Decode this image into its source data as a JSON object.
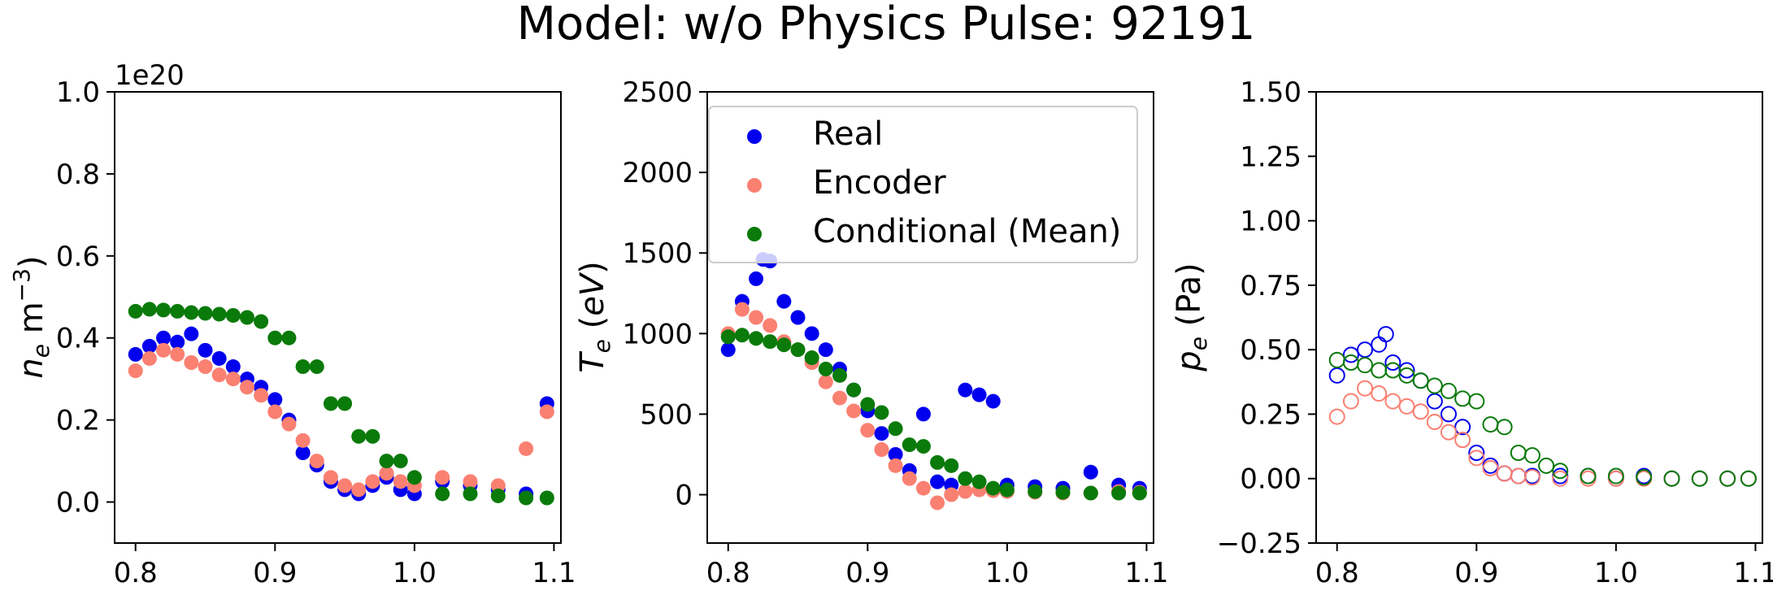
{
  "figure": {
    "title": "Model: w/o Physics  Pulse: 92191"
  },
  "colors": {
    "real": "#0000ee",
    "encoder": "#fa8072",
    "conditional": "#0a7a0a"
  },
  "legend": {
    "location": "upper-right of middle panel",
    "entries": [
      {
        "label": "Real",
        "color": "#0000ee"
      },
      {
        "label": "Encoder",
        "color": "#fa8072"
      },
      {
        "label": "Conditional (Mean)",
        "color": "#0a7a0a"
      }
    ]
  },
  "chart_data": [
    {
      "type": "scatter",
      "marker": "filled",
      "ylabel": "n_e m^-3",
      "offset_text": "1e20",
      "xlim": [
        0.785,
        1.105
      ],
      "ylim": [
        -0.1,
        1.0
      ],
      "xticks": [
        0.8,
        0.9,
        1.0,
        1.1
      ],
      "xtick_labels": [
        "0.8",
        "0.9",
        "1.0",
        "1.1"
      ],
      "yticks": [
        0.0,
        0.2,
        0.4,
        0.6,
        0.8,
        1.0
      ],
      "ytick_labels": [
        "0.0",
        "0.2",
        "0.4",
        "0.6",
        "0.8",
        "1.0"
      ],
      "series": [
        {
          "name": "Real",
          "x": [
            0.8,
            0.81,
            0.82,
            0.83,
            0.84,
            0.85,
            0.86,
            0.87,
            0.88,
            0.89,
            0.9,
            0.91,
            0.92,
            0.93,
            0.94,
            0.95,
            0.96,
            0.97,
            0.98,
            0.99,
            1.0,
            1.02,
            1.04,
            1.06,
            1.08,
            1.095
          ],
          "y": [
            0.36,
            0.38,
            0.4,
            0.39,
            0.41,
            0.37,
            0.35,
            0.33,
            0.3,
            0.28,
            0.25,
            0.2,
            0.12,
            0.09,
            0.05,
            0.03,
            0.02,
            0.04,
            0.06,
            0.03,
            0.02,
            0.05,
            0.04,
            0.03,
            0.02,
            0.24
          ]
        },
        {
          "name": "Encoder",
          "x": [
            0.8,
            0.81,
            0.82,
            0.83,
            0.84,
            0.85,
            0.86,
            0.87,
            0.88,
            0.89,
            0.9,
            0.91,
            0.92,
            0.93,
            0.94,
            0.95,
            0.96,
            0.97,
            0.98,
            0.99,
            1.0,
            1.02,
            1.04,
            1.06,
            1.08,
            1.095
          ],
          "y": [
            0.32,
            0.35,
            0.37,
            0.36,
            0.34,
            0.33,
            0.31,
            0.3,
            0.28,
            0.26,
            0.22,
            0.19,
            0.15,
            0.1,
            0.06,
            0.04,
            0.03,
            0.05,
            0.07,
            0.05,
            0.04,
            0.06,
            0.05,
            0.04,
            0.13,
            0.22
          ]
        },
        {
          "name": "Conditional (Mean)",
          "x": [
            0.8,
            0.81,
            0.82,
            0.83,
            0.84,
            0.85,
            0.86,
            0.87,
            0.88,
            0.89,
            0.9,
            0.91,
            0.92,
            0.93,
            0.94,
            0.95,
            0.96,
            0.97,
            0.98,
            0.99,
            1.0,
            1.02,
            1.04,
            1.06,
            1.08,
            1.095
          ],
          "y": [
            0.465,
            0.47,
            0.468,
            0.465,
            0.462,
            0.46,
            0.458,
            0.455,
            0.45,
            0.44,
            0.4,
            0.4,
            0.33,
            0.33,
            0.24,
            0.24,
            0.16,
            0.16,
            0.1,
            0.1,
            0.06,
            0.02,
            0.02,
            0.015,
            0.01,
            0.01
          ]
        }
      ]
    },
    {
      "type": "scatter",
      "marker": "filled",
      "ylabel": "T_e (eV)",
      "xlim": [
        0.785,
        1.105
      ],
      "ylim": [
        -300,
        2500
      ],
      "xticks": [
        0.8,
        0.9,
        1.0,
        1.1
      ],
      "xtick_labels": [
        "0.8",
        "0.9",
        "1.0",
        "1.1"
      ],
      "yticks": [
        0,
        500,
        1000,
        1500,
        2000,
        2500
      ],
      "ytick_labels": [
        "0",
        "500",
        "1000",
        "1500",
        "2000",
        "2500"
      ],
      "series": [
        {
          "name": "Real",
          "x": [
            0.8,
            0.81,
            0.82,
            0.825,
            0.83,
            0.84,
            0.85,
            0.86,
            0.87,
            0.88,
            0.89,
            0.9,
            0.91,
            0.92,
            0.93,
            0.94,
            0.95,
            0.96,
            0.97,
            0.98,
            0.99,
            1.0,
            1.02,
            1.04,
            1.06,
            1.08,
            1.095
          ],
          "y": [
            900,
            1200,
            1340,
            1460,
            1450,
            1200,
            1100,
            1000,
            900,
            780,
            650,
            520,
            380,
            250,
            150,
            500,
            80,
            60,
            650,
            620,
            580,
            60,
            50,
            40,
            140,
            60,
            40
          ]
        },
        {
          "name": "Encoder",
          "x": [
            0.8,
            0.81,
            0.82,
            0.83,
            0.84,
            0.85,
            0.86,
            0.87,
            0.88,
            0.89,
            0.9,
            0.91,
            0.92,
            0.93,
            0.94,
            0.95,
            0.96,
            0.97,
            0.98,
            0.99,
            1.0,
            1.02,
            1.04,
            1.06,
            1.08,
            1.095
          ],
          "y": [
            1000,
            1150,
            1100,
            1050,
            950,
            900,
            820,
            700,
            600,
            520,
            400,
            280,
            180,
            100,
            40,
            -50,
            0,
            20,
            30,
            25,
            20,
            15,
            10,
            10,
            20,
            15
          ]
        },
        {
          "name": "Conditional (Mean)",
          "x": [
            0.8,
            0.81,
            0.82,
            0.83,
            0.84,
            0.85,
            0.86,
            0.87,
            0.88,
            0.89,
            0.9,
            0.91,
            0.92,
            0.93,
            0.94,
            0.95,
            0.96,
            0.97,
            0.98,
            0.99,
            1.0,
            1.02,
            1.04,
            1.06,
            1.08,
            1.095
          ],
          "y": [
            980,
            990,
            970,
            950,
            930,
            900,
            850,
            780,
            740,
            650,
            560,
            510,
            410,
            310,
            300,
            200,
            180,
            100,
            80,
            40,
            30,
            20,
            15,
            10,
            10,
            10
          ]
        }
      ]
    },
    {
      "type": "scatter",
      "marker": "open",
      "ylabel": "p_e (Pa)",
      "xlim": [
        0.785,
        1.105
      ],
      "ylim": [
        -0.25,
        1.5
      ],
      "xticks": [
        0.8,
        0.9,
        1.0,
        1.1
      ],
      "xtick_labels": [
        "0.8",
        "0.9",
        "1.0",
        "1.1"
      ],
      "yticks": [
        -0.25,
        0.0,
        0.25,
        0.5,
        0.75,
        1.0,
        1.25,
        1.5
      ],
      "ytick_labels": [
        "−0.25",
        "0.00",
        "0.25",
        "0.50",
        "0.75",
        "1.00",
        "1.25",
        "1.50"
      ],
      "series": [
        {
          "name": "Real",
          "x": [
            0.8,
            0.81,
            0.82,
            0.83,
            0.835,
            0.84,
            0.85,
            0.86,
            0.87,
            0.88,
            0.89,
            0.9,
            0.91,
            0.92,
            0.93,
            0.94,
            0.96,
            0.98,
            1.0,
            1.02,
            1.04,
            1.06,
            1.08,
            1.095
          ],
          "y": [
            0.4,
            0.48,
            0.5,
            0.52,
            0.56,
            0.45,
            0.42,
            0.38,
            0.3,
            0.25,
            0.2,
            0.1,
            0.05,
            0.02,
            0.01,
            0.01,
            0.01,
            0.01,
            0.0,
            0.01,
            0.0,
            0.0,
            0.0,
            0.0
          ]
        },
        {
          "name": "Encoder",
          "x": [
            0.8,
            0.81,
            0.82,
            0.83,
            0.84,
            0.85,
            0.86,
            0.87,
            0.88,
            0.89,
            0.9,
            0.91,
            0.92,
            0.93,
            0.94,
            0.96,
            0.98,
            1.0,
            1.02,
            1.04,
            1.06,
            1.08,
            1.095
          ],
          "y": [
            0.24,
            0.3,
            0.35,
            0.33,
            0.3,
            0.28,
            0.26,
            0.22,
            0.18,
            0.15,
            0.08,
            0.04,
            0.02,
            0.01,
            0.005,
            0.0,
            0.0,
            0.0,
            0.0,
            0.0,
            0.0,
            0.0,
            0.0
          ]
        },
        {
          "name": "Conditional (Mean)",
          "x": [
            0.8,
            0.81,
            0.82,
            0.83,
            0.84,
            0.85,
            0.86,
            0.87,
            0.88,
            0.89,
            0.9,
            0.91,
            0.92,
            0.93,
            0.94,
            0.95,
            0.96,
            0.98,
            1.0,
            1.02,
            1.04,
            1.06,
            1.08,
            1.095
          ],
          "y": [
            0.46,
            0.45,
            0.44,
            0.42,
            0.42,
            0.4,
            0.38,
            0.36,
            0.34,
            0.31,
            0.3,
            0.21,
            0.2,
            0.1,
            0.09,
            0.05,
            0.03,
            0.01,
            0.01,
            0.005,
            0.0,
            0.0,
            0.0,
            0.0
          ]
        }
      ]
    }
  ]
}
